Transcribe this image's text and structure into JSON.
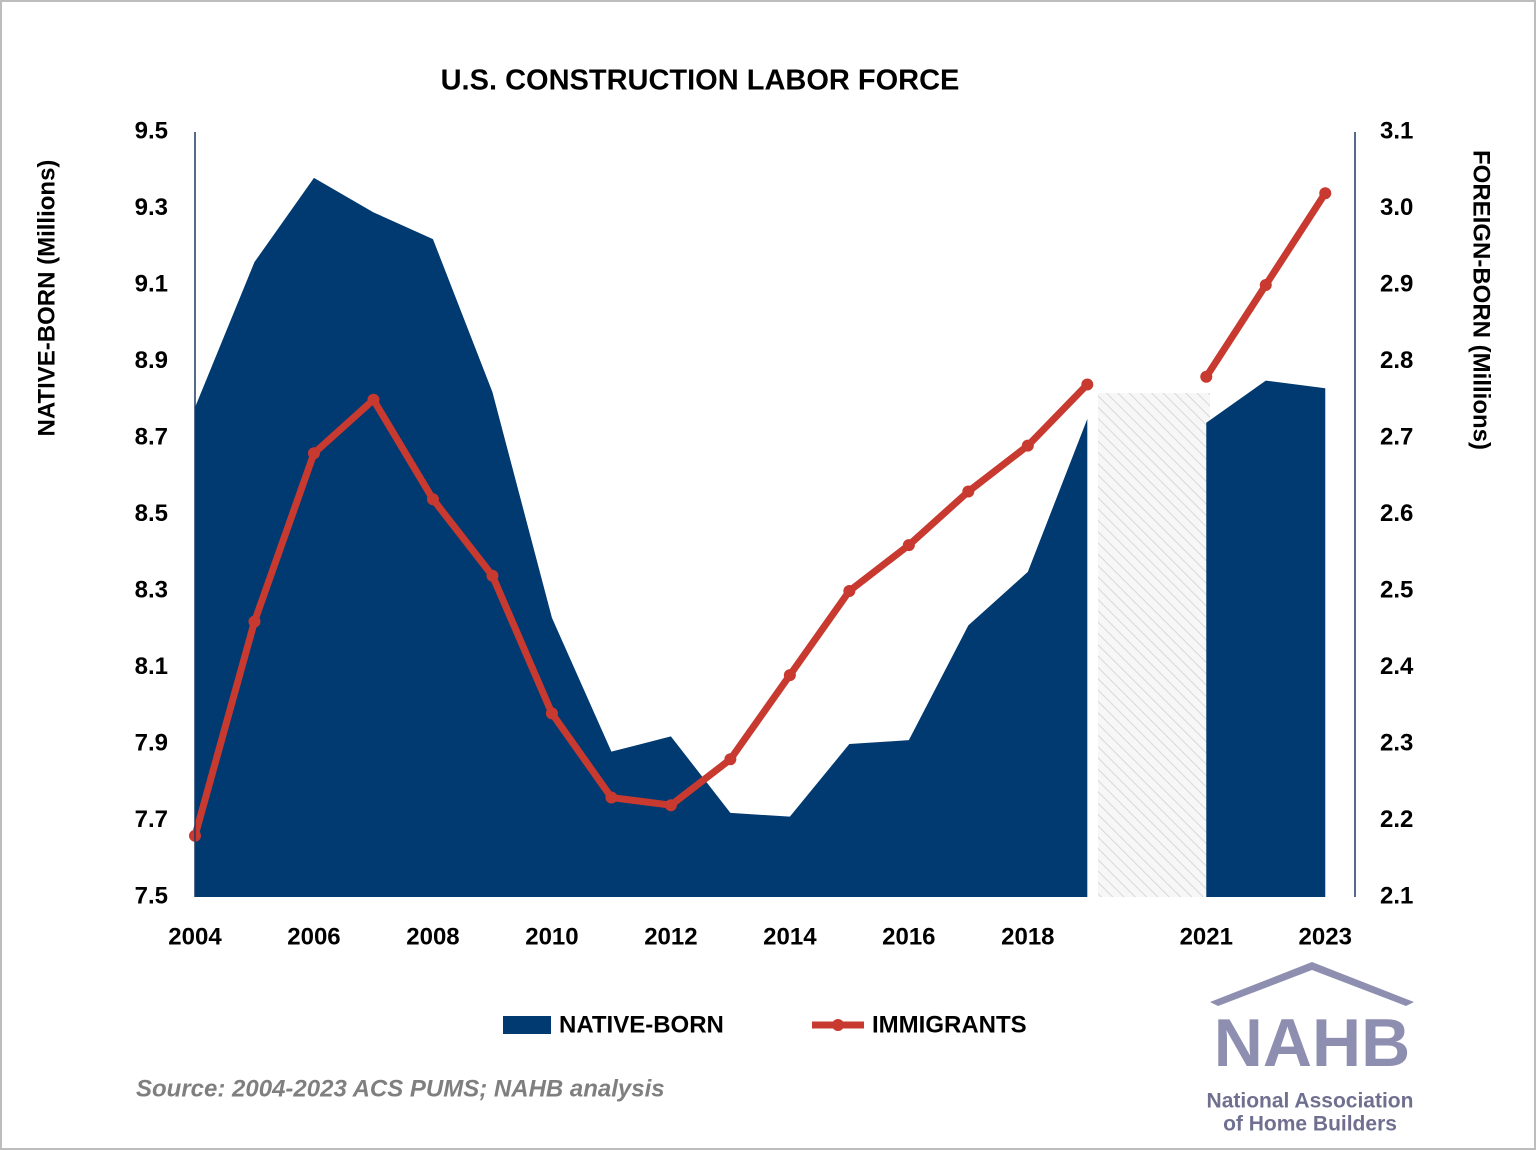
{
  "chart_data": {
    "type": "area-line",
    "title": "U.S. CONSTRUCTION LABOR FORCE",
    "y_label": "NATIVE-BORN (Millions)",
    "y2_label": "FOREIGN-BORN (Millions)",
    "x": [
      2004,
      2005,
      2006,
      2007,
      2008,
      2009,
      2010,
      2011,
      2012,
      2013,
      2014,
      2015,
      2016,
      2017,
      2018,
      2019,
      2020,
      2021,
      2022,
      2023
    ],
    "xlim": [
      2004,
      2023.5
    ],
    "xticks": [
      2004,
      2006,
      2008,
      2010,
      2012,
      2014,
      2016,
      2018,
      2021,
      2023
    ],
    "ylim": [
      7.5,
      9.5
    ],
    "yticks": [
      7.5,
      7.7,
      7.9,
      8.1,
      8.3,
      8.5,
      8.7,
      8.9,
      9.1,
      9.3,
      9.5
    ],
    "y2lim": [
      2.1,
      3.1
    ],
    "y2ticks": [
      2.1,
      2.2,
      2.3,
      2.4,
      2.5,
      2.6,
      2.7,
      2.8,
      2.9,
      {
        "value": 3,
        "label": "3.0"
      },
      3.1
    ],
    "series": [
      {
        "name": "NATIVE-BORN",
        "color": "#003a70",
        "kind": "area",
        "values": [
          8.78,
          9.16,
          9.38,
          9.29,
          9.22,
          8.82,
          8.23,
          7.88,
          7.92,
          7.72,
          7.71,
          7.9,
          7.91,
          8.21,
          8.35,
          8.75,
          null,
          8.74,
          8.85,
          8.83
        ]
      },
      {
        "name": "IMMIGRANTS",
        "color": "#c8392f",
        "kind": "line",
        "axis": "y2",
        "values": [
          2.18,
          2.46,
          2.68,
          2.75,
          2.62,
          2.52,
          2.34,
          2.23,
          2.22,
          2.28,
          2.39,
          2.5,
          2.56,
          2.63,
          2.69,
          2.77,
          null,
          2.78,
          2.9,
          3.02
        ]
      }
    ],
    "source": "Source: 2004-2023 ACS PUMS; NAHB analysis"
  },
  "logo": {
    "mark": "NAHB",
    "name": [
      "National Association",
      "of Home Builders"
    ]
  }
}
